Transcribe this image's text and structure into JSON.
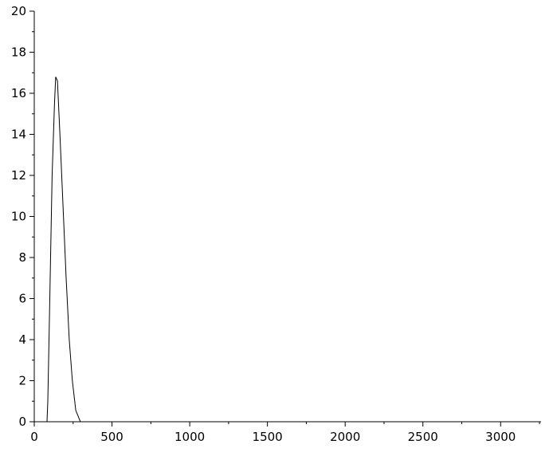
{
  "chart_data": {
    "type": "line",
    "title": "",
    "xlabel": "",
    "ylabel": "",
    "xlim": [
      0,
      3260
    ],
    "ylim": [
      0,
      20
    ],
    "grid": false,
    "x_ticks": [
      0,
      500,
      1000,
      1500,
      2000,
      2500,
      3000
    ],
    "y_ticks": [
      0,
      2,
      4,
      6,
      8,
      10,
      12,
      14,
      16,
      18,
      20
    ],
    "series": [
      {
        "color": "#000000",
        "x": [
          82,
          87,
          100,
          115,
          130,
          138,
          149,
          165,
          185,
          205,
          225,
          245,
          267,
          297
        ],
        "y": [
          0,
          1.0,
          6.0,
          12.0,
          15.5,
          16.8,
          16.6,
          14.0,
          10.5,
          7.0,
          4.0,
          2.0,
          0.55,
          0
        ]
      }
    ]
  }
}
